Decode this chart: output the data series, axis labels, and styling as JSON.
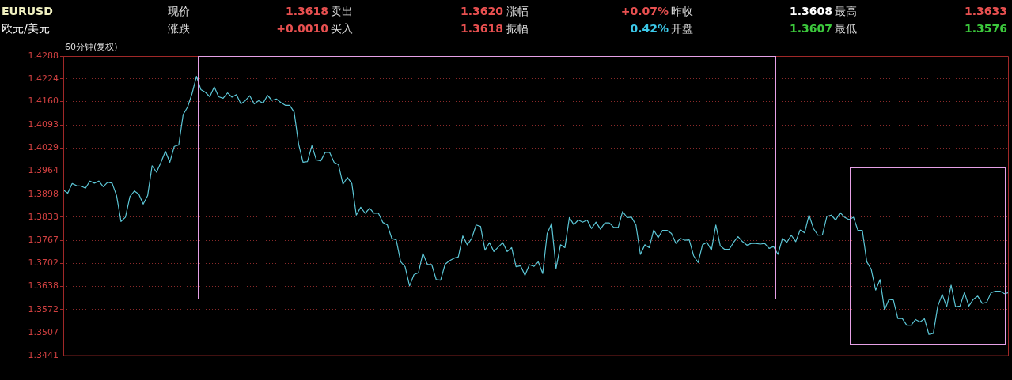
{
  "chart_data": {
    "type": "line",
    "title": "60分钟(复权)",
    "annotations": [
      "EURUSD",
      "现价",
      "1.3618",
      "卖出",
      "1.3620",
      "涨幅",
      "+0.07%",
      "昨收",
      "1.3608",
      "最高",
      "1.3633",
      "欧元/美元",
      "涨跌",
      "+0.0010",
      "买入",
      "1.3618",
      "振幅",
      "0.42%",
      "开盘",
      "1.3607",
      "最低",
      "1.3576"
    ],
    "categories": [
      null,
      null,
      null,
      null,
      null,
      null,
      null,
      null,
      null,
      null,
      null,
      null,
      null,
      null,
      null,
      null,
      null,
      null,
      null,
      null,
      null,
      null,
      null,
      null,
      null,
      null,
      null,
      null,
      null,
      null,
      null,
      null,
      null,
      null,
      null,
      null,
      null,
      null,
      null,
      null,
      null,
      null,
      null,
      null,
      null,
      null,
      null,
      null,
      null,
      null,
      null,
      null,
      null,
      null,
      null,
      null,
      null,
      null,
      null,
      null,
      null,
      null,
      null,
      null,
      null,
      null,
      null,
      null,
      null,
      null,
      null,
      null,
      null,
      null,
      null,
      null,
      null,
      null,
      null,
      null,
      null,
      null,
      null,
      null,
      null,
      null,
      null,
      null,
      null,
      null,
      null,
      null,
      null,
      null,
      null,
      null,
      null,
      null,
      null,
      null,
      null,
      null,
      null,
      null,
      null,
      null,
      null,
      null,
      null,
      null,
      null,
      null,
      null,
      null,
      null,
      null,
      null,
      null,
      null,
      null,
      null,
      null,
      null,
      null,
      null,
      null,
      null,
      null,
      null,
      null,
      null,
      null,
      null,
      null,
      null,
      null,
      null,
      null,
      null,
      null,
      null,
      null,
      null,
      null,
      null,
      null,
      null,
      null,
      null,
      null,
      null,
      null,
      null,
      null,
      null,
      null,
      null,
      null,
      null,
      null,
      null,
      null,
      null,
      null,
      null,
      null,
      null,
      null,
      null,
      null,
      null,
      null,
      null,
      null,
      null,
      null,
      null,
      null,
      null,
      null,
      null,
      null,
      null,
      null,
      null,
      null,
      null,
      null,
      null,
      null,
      null,
      null,
      null,
      null,
      null,
      null,
      null,
      null,
      null,
      null,
      null,
      null,
      null,
      null,
      null,
      null,
      null,
      null,
      null,
      null,
      null,
      null,
      null,
      null
    ],
    "series": [
      {
        "color": "#5cc6d6",
        "values": [
          1.391,
          1.3901,
          1.3928,
          1.3922,
          1.3921,
          1.3915,
          1.3935,
          1.3929,
          1.3935,
          1.3919,
          1.3932,
          1.3929,
          1.3894,
          1.3821,
          1.3833,
          1.3891,
          1.3907,
          1.3898,
          1.387,
          1.3894,
          1.3978,
          1.396,
          1.3988,
          1.4019,
          1.3988,
          1.4033,
          1.4037,
          1.4123,
          1.4144,
          1.4182,
          1.4231,
          1.4193,
          1.4186,
          1.4173,
          1.4201,
          1.4173,
          1.4169,
          1.4184,
          1.4172,
          1.4179,
          1.4153,
          1.4162,
          1.4176,
          1.4153,
          1.4162,
          1.4155,
          1.4177,
          1.4163,
          1.4167,
          1.4157,
          1.4149,
          1.4149,
          1.413,
          1.404,
          1.3988,
          1.399,
          1.4035,
          1.3995,
          1.3992,
          1.4016,
          1.4016,
          1.3988,
          1.3981,
          1.3926,
          1.3945,
          1.3928,
          1.3839,
          1.3861,
          1.3844,
          1.3858,
          1.3844,
          1.3844,
          1.3818,
          1.3811,
          1.3773,
          1.3769,
          1.3707,
          1.3693,
          1.3639,
          1.3671,
          1.3676,
          1.3731,
          1.37,
          1.3699,
          1.3657,
          1.3655,
          1.37,
          1.371,
          1.3717,
          1.3721,
          1.378,
          1.3755,
          1.3773,
          1.3811,
          1.3807,
          1.374,
          1.3761,
          1.3736,
          1.3749,
          1.3761,
          1.3736,
          1.3747,
          1.3693,
          1.3696,
          1.3669,
          1.3699,
          1.3694,
          1.3707,
          1.3674,
          1.3787,
          1.3815,
          1.3688,
          1.3755,
          1.3747,
          1.3832,
          1.3812,
          1.3825,
          1.3819,
          1.3825,
          1.3801,
          1.3819,
          1.3799,
          1.3817,
          1.3817,
          1.3804,
          1.3804,
          1.3849,
          1.3832,
          1.3833,
          1.3811,
          1.3728,
          1.3755,
          1.3747,
          1.3797,
          1.3775,
          1.3796,
          1.3796,
          1.3787,
          1.3759,
          1.3773,
          1.3768,
          1.3769,
          1.3724,
          1.3705,
          1.3755,
          1.3762,
          1.374,
          1.3811,
          1.3752,
          1.3742,
          1.3742,
          1.3762,
          1.3778,
          1.3764,
          1.3754,
          1.3759,
          1.3759,
          1.3757,
          1.3759,
          1.3745,
          1.375,
          1.3728,
          1.3773,
          1.3762,
          1.3782,
          1.3764,
          1.3797,
          1.3789,
          1.3839,
          1.3801,
          1.3782,
          1.3783,
          1.3835,
          1.3839,
          1.3825,
          1.3846,
          1.3833,
          1.3826,
          1.3833,
          1.3796,
          1.3796,
          1.3707,
          1.3686,
          1.3627,
          1.3657,
          1.3571,
          1.3601,
          1.3599,
          1.3547,
          1.3547,
          1.3528,
          1.3528,
          1.3544,
          1.3537,
          1.3546,
          1.3502,
          1.3505,
          1.3582,
          1.3615,
          1.358,
          1.3641,
          1.358,
          1.3582,
          1.362,
          1.3582,
          1.3601,
          1.361,
          1.359,
          1.3592,
          1.362,
          1.3624,
          1.3624,
          1.3617,
          1.362
        ]
      }
    ],
    "ylim": [
      1.3441,
      1.4288
    ],
    "yticks": [
      1.4288,
      1.4224,
      {
        "value": 1.416,
        "label": "1.4160"
      },
      1.4093,
      1.4029,
      1.3964,
      1.3898,
      1.3833,
      1.3767,
      1.3702,
      1.3638,
      1.3572,
      1.3507,
      1.3441
    ],
    "grid": "y",
    "legend": false,
    "marker": "none",
    "line_style": "solid"
  }
}
